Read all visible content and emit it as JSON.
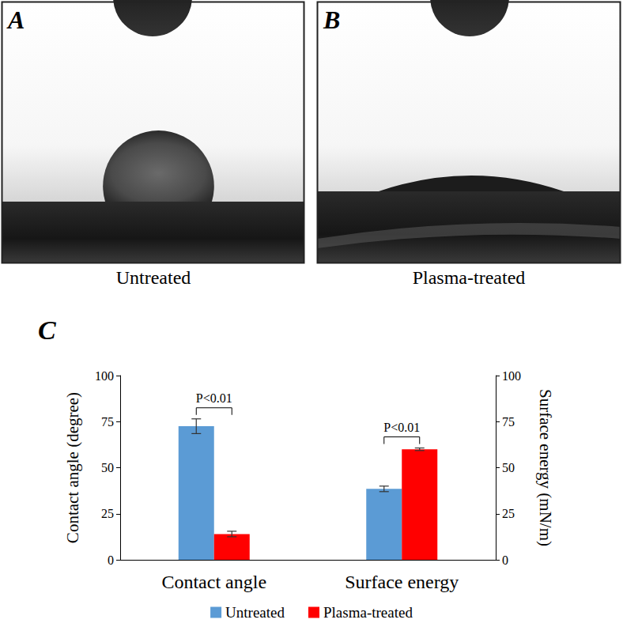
{
  "figure": {
    "panels": [
      {
        "label": "A",
        "caption": "Untreated"
      },
      {
        "label": "B",
        "caption": "Plasma-treated"
      }
    ],
    "chart_label": "C"
  },
  "chart_data": {
    "type": "bar",
    "categories": [
      "Contact angle",
      "Surface energy"
    ],
    "series": [
      {
        "name": "Untreated",
        "color": "#5b9bd5",
        "values": [
          72.5,
          38.5
        ],
        "errors": [
          4,
          1.5
        ]
      },
      {
        "name": "Plasma-treated",
        "color": "#ff0000",
        "values": [
          14,
          60
        ],
        "errors": [
          1.5,
          0.7
        ]
      }
    ],
    "ylabel": "Contact angle (degree)",
    "y2label": "Surface energy (mN/m)",
    "ylim": [
      0,
      100
    ],
    "yticks": [
      0,
      25,
      50,
      75,
      100
    ],
    "y2lim": [
      0,
      100
    ],
    "y2ticks": [
      0,
      25,
      50,
      75,
      100
    ],
    "annotations": [
      {
        "text": "P<0.01",
        "category": "Contact angle"
      },
      {
        "text": "P<0.01",
        "category": "Surface energy"
      }
    ],
    "legend": "bottom",
    "grid": false
  }
}
